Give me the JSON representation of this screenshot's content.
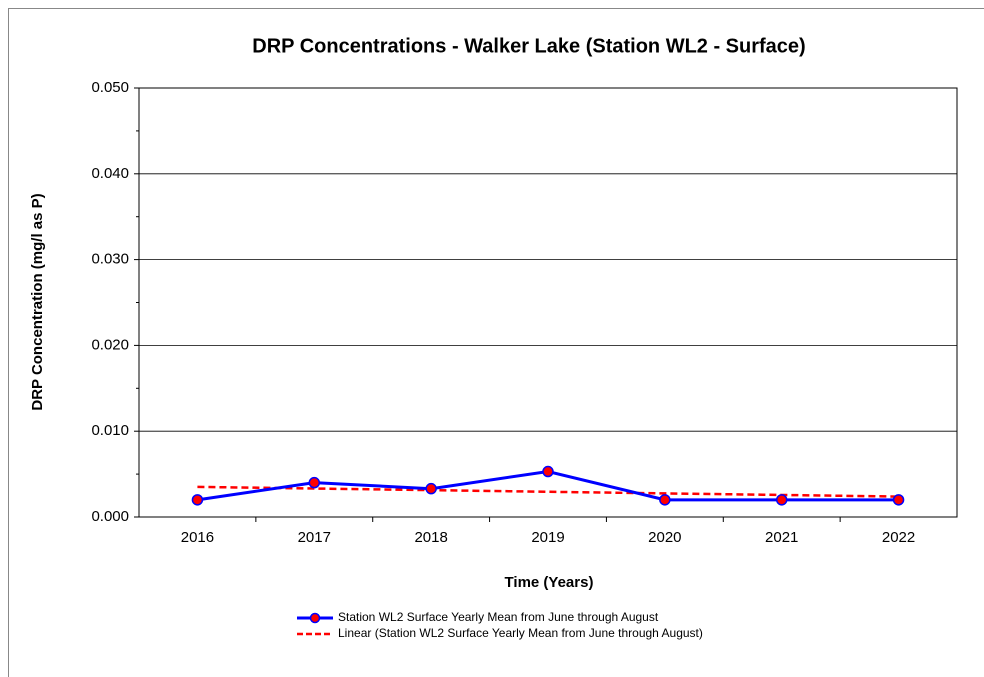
{
  "chart_data": {
    "type": "line",
    "title": "DRP Concentrations  - Walker Lake (Station WL2 - Surface)",
    "x_label": "Time (Years)",
    "y_label": "DRP Concentration (mg/l as P)",
    "categories": [
      "2016",
      "2017",
      "2018",
      "2019",
      "2020",
      "2021",
      "2022"
    ],
    "series": [
      {
        "name": "Station WL2 Surface Yearly Mean from June through August",
        "color": "#0000ff",
        "marker_color": "#ff0000",
        "dashed": false,
        "values": [
          0.002,
          0.004,
          0.0033,
          0.0053,
          0.002,
          0.002,
          0.002
        ]
      },
      {
        "name": "Linear (Station WL2 Surface Yearly Mean from June through August)",
        "color": "#ff0000",
        "dashed": true,
        "values": [
          0.00351,
          0.00332,
          0.00313,
          0.00294,
          0.00275,
          0.00257,
          0.00238
        ]
      }
    ],
    "ylim": [
      0,
      0.05
    ],
    "yticks": [
      {
        "value": 0,
        "label": "0.000"
      },
      {
        "value": 0.01,
        "label": "0.010"
      },
      {
        "value": 0.02,
        "label": "0.020"
      },
      {
        "value": 0.03,
        "label": "0.030"
      },
      {
        "value": 0.04,
        "label": "0.040"
      },
      {
        "value": 0.05,
        "label": "0.050"
      }
    ],
    "grid": true
  }
}
